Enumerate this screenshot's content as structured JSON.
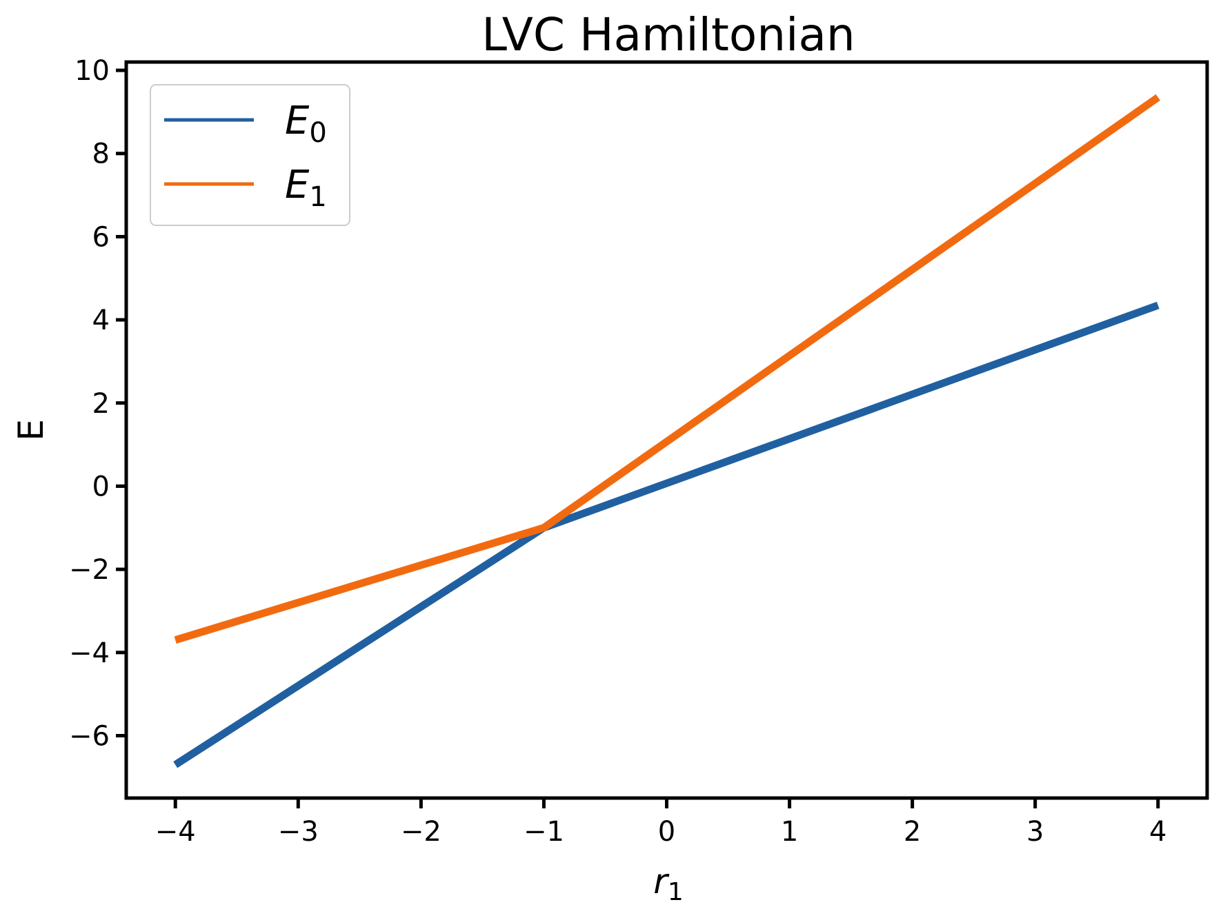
{
  "chart_data": {
    "type": "line",
    "title": "LVC Hamiltonian",
    "xlabel": "r",
    "xlabel_sub": "1",
    "ylabel": "E",
    "xlim": [
      -4.4,
      4.4
    ],
    "ylim": [
      -7.5,
      10.2
    ],
    "xticks": [
      -4,
      -3,
      -2,
      -1,
      0,
      1,
      2,
      3,
      4
    ],
    "xtick_labels": [
      "−4",
      "−3",
      "−2",
      "−1",
      "0",
      "1",
      "2",
      "3",
      "4"
    ],
    "yticks": [
      -6,
      -4,
      -2,
      0,
      2,
      4,
      6,
      8,
      10
    ],
    "ytick_labels": [
      "−6",
      "−4",
      "−2",
      "0",
      "2",
      "4",
      "6",
      "8",
      "10"
    ],
    "grid": false,
    "legend_position": "top-left",
    "series": [
      {
        "name": "E",
        "name_sub": "0",
        "color": "#2060a0",
        "x": [
          -4,
          -1,
          4
        ],
        "y": [
          -6.7,
          -1,
          4.35
        ]
      },
      {
        "name": "E",
        "name_sub": "1",
        "color": "#f26a10",
        "x": [
          -4,
          -1,
          4
        ],
        "y": [
          -3.7,
          -1,
          9.35
        ]
      }
    ]
  }
}
